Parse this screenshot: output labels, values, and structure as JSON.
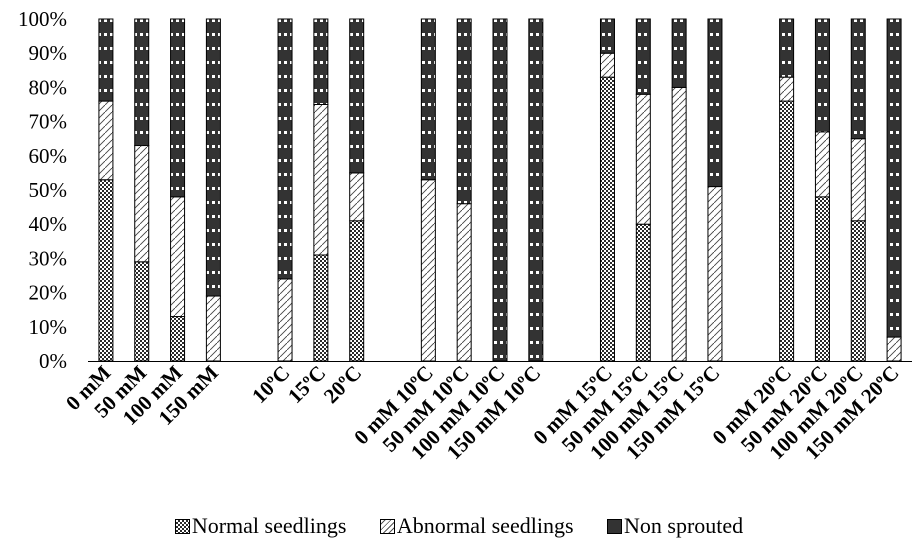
{
  "chart_data": {
    "type": "bar",
    "stacked": true,
    "categories": [
      "0 mM",
      "50 mM",
      "100 mM",
      "150 mM",
      "",
      "10ºC",
      "15ºC",
      "20ºC",
      "",
      "0 mM 10ºC",
      "50 mM 10ºC",
      "100 mM 10ºC",
      "150 mM 10ºC",
      "",
      "0 mM 15ºC",
      "50 mM 15ºC",
      "100 mM 15ºC",
      "150 mM 15ºC",
      "",
      "0 mM 20ºC",
      "50 mM 20ºC",
      "100 mM 20ºC",
      "150 mM 20ºC"
    ],
    "series": [
      {
        "name": "Normal seedlings",
        "pattern": "checker",
        "color": "#3a3a3a",
        "values": [
          53,
          29,
          13,
          0,
          null,
          0,
          31,
          41,
          null,
          0,
          0,
          0,
          0,
          null,
          83,
          40,
          0,
          0,
          null,
          76,
          48,
          41,
          0
        ]
      },
      {
        "name": "Abnormal seedlings",
        "pattern": "hatch",
        "color": "#ffffff",
        "values": [
          23,
          34,
          35,
          19,
          null,
          24,
          44,
          14,
          null,
          53,
          46,
          0,
          0,
          null,
          7,
          38,
          80,
          51,
          null,
          7,
          19,
          24,
          7
        ]
      },
      {
        "name": "Non sprouted",
        "pattern": "dotted-dark",
        "color": "#333333",
        "values": [
          24,
          37,
          52,
          81,
          null,
          76,
          25,
          45,
          null,
          47,
          54,
          100,
          100,
          null,
          10,
          22,
          20,
          49,
          null,
          17,
          33,
          35,
          93
        ]
      }
    ],
    "y_ticks": [
      "0%",
      "10%",
      "20%",
      "30%",
      "40%",
      "50%",
      "60%",
      "70%",
      "80%",
      "90%",
      "100%"
    ],
    "ylim": [
      0,
      100
    ],
    "y_unit": "%",
    "grid": false,
    "legend_position": "bottom"
  }
}
